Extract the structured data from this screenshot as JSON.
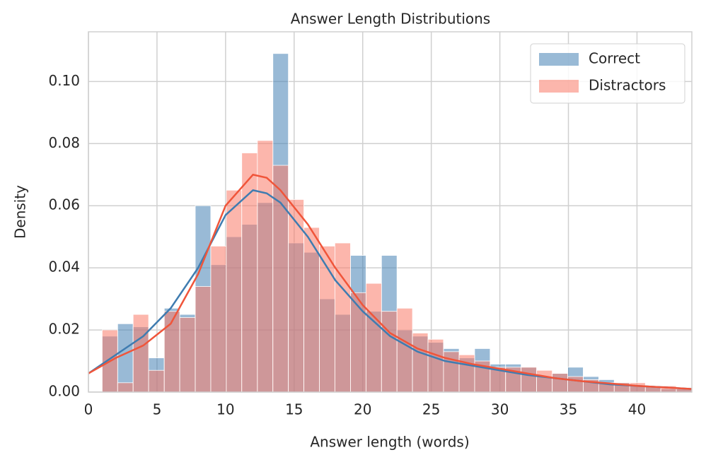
{
  "chart_data": {
    "type": "histogram",
    "title": "Answer Length Distributions",
    "xlabel": "Answer length (words)",
    "ylabel": "Density",
    "bins": [
      1.0,
      2.13,
      3.26,
      4.39,
      5.53,
      6.66,
      7.79,
      8.92,
      10.05,
      11.18,
      12.32,
      13.45,
      14.58,
      15.71,
      16.84,
      17.97,
      19.11,
      20.24,
      21.37,
      22.5,
      23.63,
      24.76,
      25.89,
      27.03,
      28.16,
      29.29,
      30.42,
      31.55,
      32.68,
      33.82,
      34.95,
      36.08,
      37.21,
      38.34,
      39.47,
      40.61,
      41.74,
      42.87,
      44.0
    ],
    "series": [
      {
        "name": "Correct",
        "color": "#4682b4",
        "values": [
          0.018,
          0.022,
          0.021,
          0.011,
          0.027,
          0.025,
          0.06,
          0.041,
          0.05,
          0.054,
          0.061,
          0.109,
          0.048,
          0.045,
          0.03,
          0.025,
          0.044,
          0.026,
          0.044,
          0.02,
          0.018,
          0.016,
          0.014,
          0.011,
          0.014,
          0.009,
          0.009,
          0.008,
          0.005,
          0.006,
          0.008,
          0.005,
          0.004,
          0.003,
          0.002,
          0.002,
          0.001,
          0.001
        ]
      },
      {
        "name": "Distractors",
        "color": "#fa7a68",
        "values": [
          0.02,
          0.003,
          0.025,
          0.007,
          0.026,
          0.024,
          0.034,
          0.047,
          0.065,
          0.077,
          0.081,
          0.073,
          0.062,
          0.053,
          0.047,
          0.048,
          0.032,
          0.035,
          0.026,
          0.027,
          0.019,
          0.017,
          0.013,
          0.012,
          0.01,
          0.008,
          0.008,
          0.008,
          0.007,
          0.006,
          0.005,
          0.004,
          0.003,
          0.003,
          0.003,
          0.002,
          0.002,
          0.001
        ]
      }
    ],
    "kde": {
      "x": [
        0,
        2,
        4,
        6,
        8,
        10,
        12,
        13,
        14,
        16,
        18,
        20,
        22,
        24,
        26,
        28,
        30,
        32,
        34,
        36,
        38,
        40,
        42,
        44
      ],
      "series": [
        {
          "color": "#3f7cb0",
          "values": [
            0.006,
            0.012,
            0.018,
            0.027,
            0.04,
            0.057,
            0.065,
            0.064,
            0.061,
            0.05,
            0.036,
            0.026,
            0.018,
            0.013,
            0.01,
            0.0085,
            0.007,
            0.0055,
            0.0045,
            0.0035,
            0.0025,
            0.002,
            0.0015,
            0.001
          ]
        },
        {
          "color": "#f0553a",
          "values": [
            0.006,
            0.011,
            0.015,
            0.022,
            0.038,
            0.06,
            0.07,
            0.069,
            0.065,
            0.054,
            0.04,
            0.028,
            0.019,
            0.014,
            0.011,
            0.009,
            0.0075,
            0.006,
            0.0045,
            0.0035,
            0.0028,
            0.002,
            0.0015,
            0.001
          ]
        }
      ]
    },
    "xlim": [
      0,
      44
    ],
    "xticks": [
      0,
      5,
      10,
      15,
      20,
      25,
      30,
      35,
      40
    ],
    "ylim": [
      0,
      0.116
    ],
    "yticks": [
      {
        "value": 0,
        "label": "0.00"
      },
      {
        "value": 0.02,
        "label": "0.02"
      },
      {
        "value": 0.04,
        "label": "0.04"
      },
      {
        "value": 0.06,
        "label": "0.06"
      },
      {
        "value": 0.08,
        "label": "0.08"
      },
      {
        "value": 0.1,
        "label": "0.10"
      }
    ],
    "grid": true,
    "legend": "upper right"
  }
}
